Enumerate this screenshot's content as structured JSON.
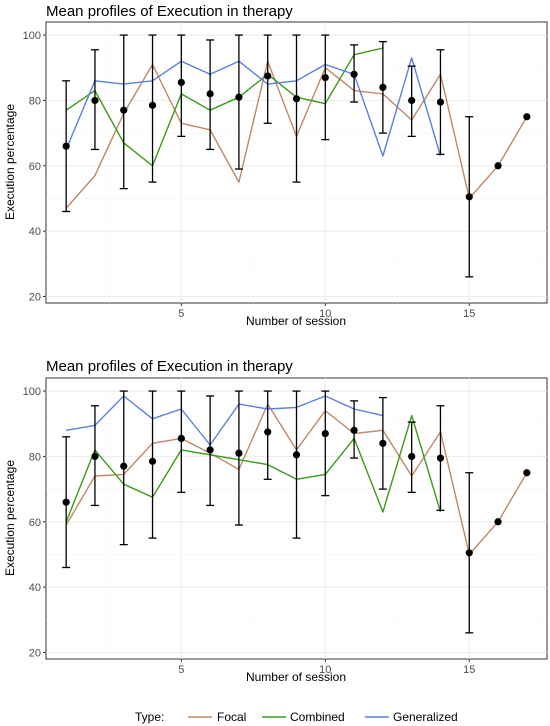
{
  "colors": {
    "Focal": "#c08868",
    "Combined": "#3a9a1a",
    "Generalized": "#5a7fe0",
    "mean": "#000000"
  },
  "legend": {
    "title": "Type:",
    "items": [
      {
        "name": "Focal",
        "color": "#c08868"
      },
      {
        "name": "Combined",
        "color": "#3a9a1a"
      },
      {
        "name": "Generalized",
        "color": "#5a7fe0"
      }
    ]
  },
  "chart_data": [
    {
      "type": "line",
      "title": "Mean profiles of Execution in therapy",
      "xlabel": "Number of session",
      "ylabel": "Execution percentage",
      "xlim": [
        0.3,
        17.7
      ],
      "ylim": [
        18,
        104
      ],
      "xticks": [
        5,
        10,
        15
      ],
      "yticks": [
        20,
        40,
        60,
        80,
        100
      ],
      "grid": true,
      "series": [
        {
          "name": "Focal",
          "x": [
            1,
            2,
            3,
            4,
            5,
            6,
            7,
            8,
            9,
            10,
            11,
            12,
            13,
            14,
            15,
            16,
            17
          ],
          "values": [
            47,
            57,
            76,
            91,
            73,
            71,
            55,
            92,
            69,
            90,
            83,
            82,
            74,
            88,
            50,
            60,
            75
          ]
        },
        {
          "name": "Combined",
          "x": [
            1,
            2,
            3,
            4,
            5,
            6,
            7,
            8,
            9,
            10,
            11,
            12
          ],
          "values": [
            77,
            83,
            67,
            60,
            82,
            77,
            81,
            88,
            81,
            79,
            94,
            96
          ]
        },
        {
          "name": "Generalized",
          "x": [
            1,
            2,
            3,
            4,
            5,
            6,
            7,
            8,
            9,
            10,
            11,
            12,
            13,
            14
          ],
          "values": [
            65,
            86,
            85,
            86,
            92,
            88,
            92,
            85,
            86,
            91,
            88,
            63,
            93,
            63
          ]
        }
      ],
      "means": {
        "x": [
          1,
          2,
          3,
          4,
          5,
          6,
          7,
          8,
          9,
          10,
          11,
          12,
          13,
          14,
          15,
          16,
          17
        ],
        "values": [
          66,
          80,
          77,
          78.5,
          85.5,
          82,
          81,
          87.5,
          80.5,
          87,
          88,
          84,
          80,
          79.5,
          50.5,
          60,
          75
        ],
        "lower": [
          46,
          65,
          53,
          55,
          69,
          65,
          59,
          73,
          55,
          68,
          79.5,
          70,
          69,
          63.5,
          26,
          60,
          75
        ],
        "upper": [
          86,
          95.5,
          100,
          100,
          100,
          98.5,
          100,
          100,
          100,
          100,
          97,
          98,
          90.5,
          95.5,
          75,
          60,
          75
        ]
      }
    },
    {
      "type": "line",
      "title": "Mean profiles of Execution in therapy",
      "xlabel": "Number of session",
      "ylabel": "Execution percentage",
      "xlim": [
        0.3,
        17.7
      ],
      "ylim": [
        18,
        104
      ],
      "xticks": [
        5,
        10,
        15
      ],
      "yticks": [
        20,
        40,
        60,
        80,
        100
      ],
      "grid": true,
      "series": [
        {
          "name": "Focal",
          "x": [
            1,
            2,
            3,
            4,
            5,
            6,
            7,
            8,
            9,
            10,
            11,
            12,
            13,
            14,
            15,
            16,
            17
          ],
          "values": [
            59,
            74,
            74.5,
            84,
            85.5,
            81,
            76,
            96,
            82,
            94,
            87,
            88,
            74,
            87.5,
            50,
            60,
            75
          ]
        },
        {
          "name": "Combined",
          "x": [
            1,
            2,
            3,
            4,
            5,
            6,
            7,
            8,
            9,
            10,
            11,
            12,
            13,
            14
          ],
          "values": [
            60,
            82,
            71.5,
            67.5,
            82,
            80.5,
            79,
            77.5,
            73,
            74.5,
            85.5,
            63,
            92.5,
            63
          ]
        },
        {
          "name": "Generalized",
          "x": [
            1,
            2,
            3,
            4,
            5,
            6,
            7,
            8,
            9,
            10,
            11,
            12
          ],
          "values": [
            88,
            89.5,
            98.5,
            91.5,
            94.5,
            83.5,
            96,
            94.5,
            95,
            98.5,
            94.5,
            92.5
          ]
        }
      ],
      "means": {
        "x": [
          1,
          2,
          3,
          4,
          5,
          6,
          7,
          8,
          9,
          10,
          11,
          12,
          13,
          14,
          15,
          16,
          17
        ],
        "values": [
          66,
          80,
          77,
          78.5,
          85.5,
          82,
          81,
          87.5,
          80.5,
          87,
          88,
          84,
          80,
          79.5,
          50.5,
          60,
          75
        ],
        "lower": [
          46,
          65,
          53,
          55,
          69,
          65,
          59,
          73,
          55,
          68,
          79.5,
          70,
          69,
          63.5,
          26,
          60,
          75
        ],
        "upper": [
          86,
          95.5,
          100,
          100,
          100,
          98.5,
          100,
          100,
          100,
          100,
          97,
          98,
          90.5,
          95.5,
          75,
          60,
          75
        ]
      }
    }
  ]
}
